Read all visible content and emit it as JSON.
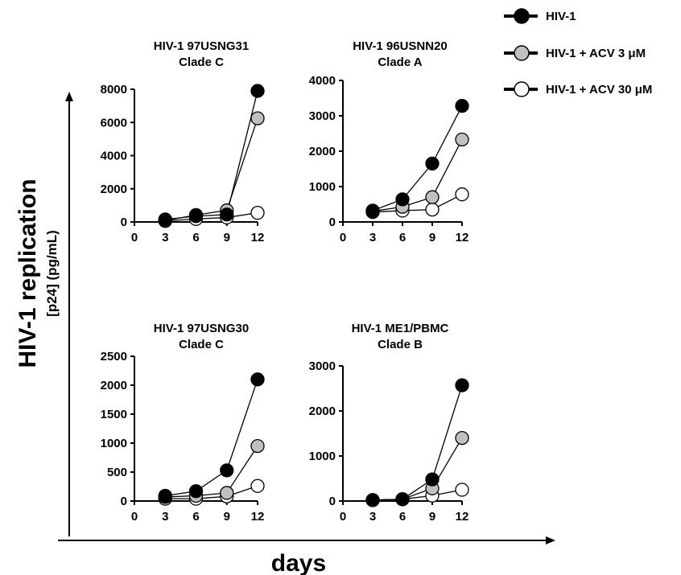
{
  "figure": {
    "ylabel": "HIV-1 replication",
    "ylabel_sub": "[p24] (pg/mL)",
    "xlabel": "days"
  },
  "legend": [
    {
      "label": "HIV-1",
      "fill": "#000000"
    },
    {
      "label": "HIV-1 + ACV 3 μM",
      "fill": "#c0c0c0"
    },
    {
      "label": "HIV-1 + ACV 30 μM",
      "fill": "#ffffff"
    }
  ],
  "chart_data": [
    {
      "type": "line",
      "title": "HIV-1 97USNG31",
      "subtitle": "Clade C",
      "x": [
        3,
        6,
        9,
        12
      ],
      "xticks": [
        0,
        3,
        6,
        9,
        12
      ],
      "xlim": [
        0,
        12
      ],
      "ylim": [
        0,
        8000
      ],
      "yticks": [
        0,
        2000,
        4000,
        6000,
        8000
      ],
      "series": [
        {
          "name": "HIV-1",
          "values": [
            150,
            350,
            450,
            7900
          ]
        },
        {
          "name": "HIV-1 + ACV 3 μM",
          "values": [
            80,
            420,
            700,
            6250
          ]
        },
        {
          "name": "HIV-1 + ACV 30 μM",
          "values": [
            60,
            180,
            270,
            550
          ]
        }
      ]
    },
    {
      "type": "line",
      "title": "HIV-1 96USNN20",
      "subtitle": "Clade A",
      "x": [
        3,
        6,
        9,
        12
      ],
      "xticks": [
        0,
        3,
        6,
        9,
        12
      ],
      "xlim": [
        0,
        12
      ],
      "ylim": [
        0,
        4000
      ],
      "yticks": [
        0,
        1000,
        2000,
        3000,
        4000
      ],
      "series": [
        {
          "name": "HIV-1",
          "values": [
            320,
            640,
            1650,
            3280
          ]
        },
        {
          "name": "HIV-1 + ACV 3 μM",
          "values": [
            300,
            430,
            700,
            2330
          ]
        },
        {
          "name": "HIV-1 + ACV 30 μM",
          "values": [
            280,
            320,
            350,
            780
          ]
        }
      ]
    },
    {
      "type": "line",
      "title": "HIV-1 97USNG30",
      "subtitle": "Clade C",
      "x": [
        3,
        6,
        9,
        12
      ],
      "xticks": [
        0,
        3,
        6,
        9,
        12
      ],
      "xlim": [
        0,
        12
      ],
      "ylim": [
        0,
        2500
      ],
      "yticks": [
        0,
        500,
        1000,
        1500,
        2000,
        2500
      ],
      "series": [
        {
          "name": "HIV-1",
          "values": [
            90,
            170,
            530,
            2100
          ]
        },
        {
          "name": "HIV-1 + ACV 3 μM",
          "values": [
            70,
            90,
            140,
            950
          ]
        },
        {
          "name": "HIV-1 + ACV 30 μM",
          "values": [
            40,
            40,
            80,
            260
          ]
        }
      ]
    },
    {
      "type": "line",
      "title": "HIV-1 ME1/PBMC",
      "subtitle": "Clade B",
      "x": [
        3,
        6,
        9,
        12
      ],
      "xticks": [
        0,
        3,
        6,
        9,
        12
      ],
      "xlim": [
        0,
        12
      ],
      "ylim": [
        0,
        3000
      ],
      "yticks": [
        0,
        1000,
        2000,
        3000
      ],
      "series": [
        {
          "name": "HIV-1",
          "values": [
            20,
            40,
            480,
            2570
          ]
        },
        {
          "name": "HIV-1 + ACV 3 μM",
          "values": [
            20,
            40,
            280,
            1400
          ]
        },
        {
          "name": "HIV-1 + ACV 30 μM",
          "values": [
            20,
            40,
            120,
            250
          ]
        }
      ]
    }
  ]
}
